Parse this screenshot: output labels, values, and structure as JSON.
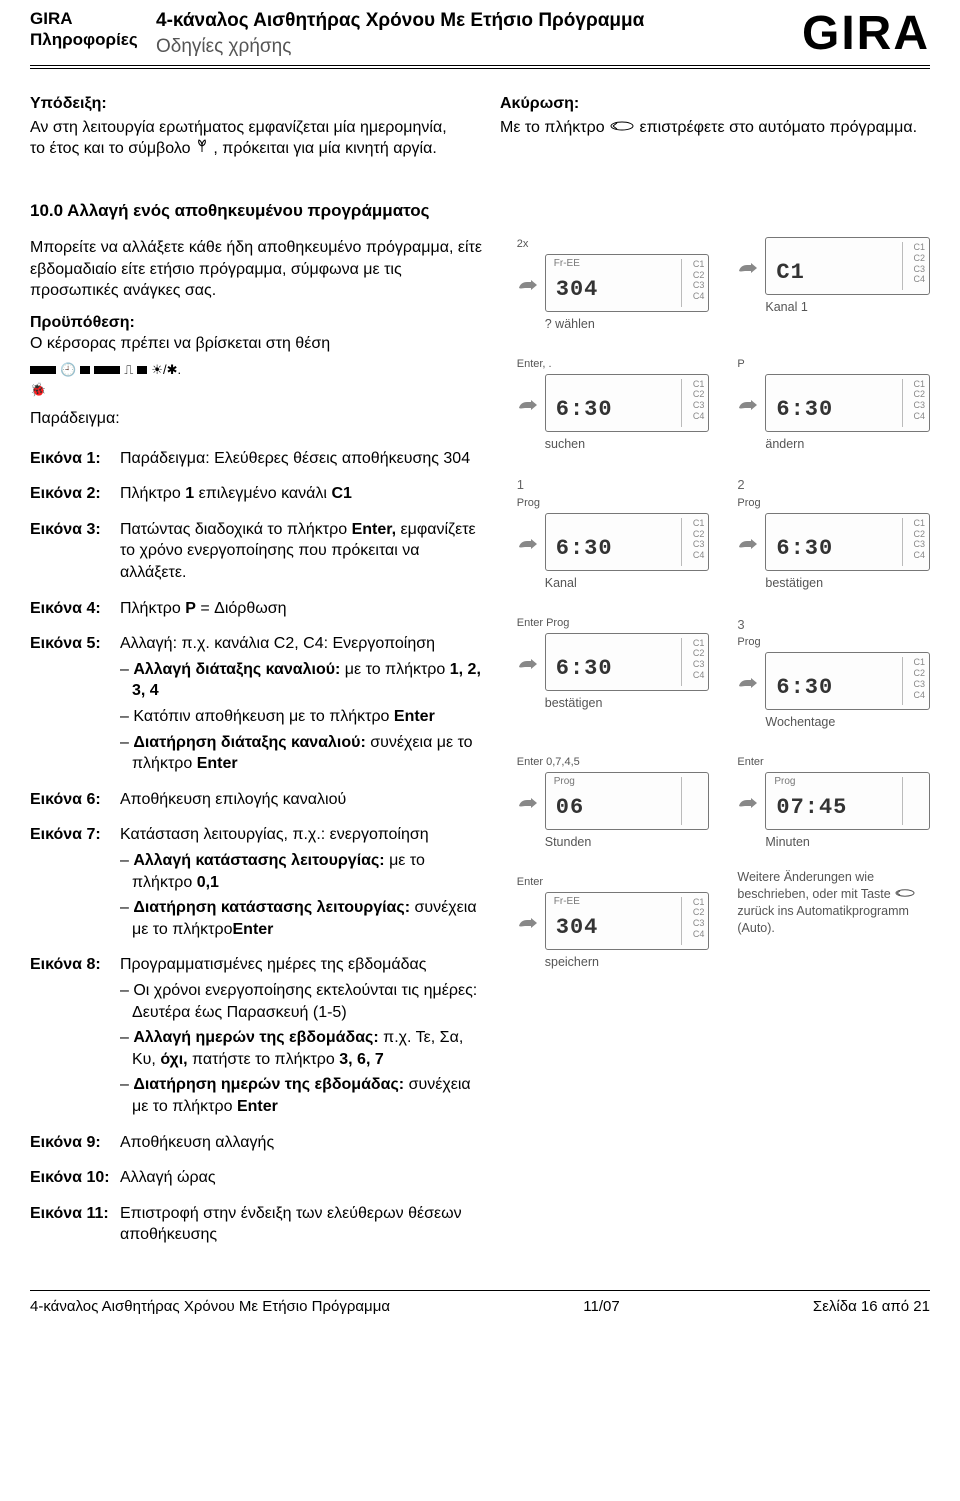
{
  "header": {
    "brand": "GIRA",
    "subbrand": "Πληροφορίες",
    "title": "4-κάναλος Αισθητήρας Χρόνου Με Ετήσιο Πρόγραμμα",
    "subtitle": "Οδηγίες χρήσης",
    "logo": "GIRA"
  },
  "intro": {
    "left": {
      "lead": "Υπόδειξη:",
      "line1a": "Αν στη λειτουργία ερωτήματος εμφανίζεται μία ημερομηνία, το έτος και το σύμβολο ",
      "line1b": ", πρόκειται για μία κινητή αργία."
    },
    "right": {
      "lead": "Ακύρωση:",
      "line1a": "Με το πλήκτρο ",
      "line1b": " επιστρέφετε στο αυτόματο πρόγραμμα."
    }
  },
  "section_heading": "10.0 Αλλαγή ενός αποθηκευμένου προγράμματος",
  "para1": "Μπορείτε να αλλάξετε κάθε ήδη αποθηκευμένο πρόγραμμα, είτε εβδομαδιαίο είτε ετήσιο πρόγραμμα, σύμφωνα με τις προσωπικές ανάγκες σας.",
  "prereq_lead": "Προϋπόθεση:",
  "prereq_text": "Ο κέρσορας πρέπει να βρίσκεται στη θέση",
  "example_label": "Παράδειγμα:",
  "figs": [
    {
      "label": "Εικόνα 1:",
      "first": "Παράδειγμα: Ελεύθερες θέσεις αποθήκευσης 304"
    },
    {
      "label": "Εικόνα 2:",
      "first": "Πλήκτρο 1 επιλεγμένο κανάλι C1",
      "first_bold_parts": [
        "1",
        "C1"
      ]
    },
    {
      "label": "Εικόνα 3:",
      "first": "Πατώντας διαδοχικά το πλήκτρο Enter, εμφανίζετε το χρόνο ενεργοποίησης που πρόκειται να αλλάξετε.",
      "first_bold_parts": [
        "Enter,"
      ]
    },
    {
      "label": "Εικόνα 4:",
      "first": "Πλήκτρο P = Διόρθωση",
      "first_bold_parts": [
        "P"
      ]
    },
    {
      "label": "Εικόνα 5:",
      "first": "Αλλαγή: π.χ. κανάλια C2, C4: Ενεργοποίηση",
      "subs": [
        {
          "b": "Αλλαγή διάταξης καναλιού:",
          "rest": " με το πλήκτρο 1, 2, 3, 4",
          "bold_tail": [
            "1, 2, 3, 4"
          ]
        },
        {
          "b": "",
          "rest": "Κατόπιν αποθήκευση με το πλήκτρο Enter",
          "bold_tail": [
            "Enter"
          ]
        },
        {
          "b": "Διατήρηση διάταξης καναλιού:",
          "rest": " συνέχεια με το πλήκτρο Enter",
          "bold_tail": [
            "Enter"
          ]
        }
      ]
    },
    {
      "label": "Εικόνα 6:",
      "first": "Αποθήκευση επιλογής καναλιού"
    },
    {
      "label": "Εικόνα 7:",
      "first": "Κατάσταση λειτουργίας, π.χ.: ενεργοποίηση",
      "subs": [
        {
          "b": "Αλλαγή κατάστασης λειτουργίας:",
          "rest": " με το πλήκτρο 0,1",
          "bold_tail": [
            "0,1"
          ]
        },
        {
          "b": "Διατήρηση κατάστασης λειτουργίας:",
          "rest": " συνέχεια με το πλήκτροEnter",
          "bold_tail": [
            "Enter"
          ]
        }
      ]
    },
    {
      "label": "Εικόνα 8:",
      "first": "Προγραμματισμένες ημέρες της εβδομάδας",
      "subs": [
        {
          "b": "",
          "rest": "Οι χρόνοι ενεργοποίησης εκτελούνται τις ημέρες: Δευτέρα έως Παρασκευή (1-5)"
        },
        {
          "b": "Αλλαγή ημερών της εβδομάδας:",
          "rest": " π.χ. Τε, Σα, Κυ, όχι, πατήστε το πλήκτρο 3, 6, 7",
          "bold_tail": [
            "όχι,",
            "3, 6, 7"
          ]
        },
        {
          "b": "Διατήρηση ημερών της εβδομάδας:",
          "rest": " συνέχεια με το πλήκτρο Enter",
          "bold_tail": [
            "Enter"
          ]
        }
      ]
    },
    {
      "label": "Εικόνα 9:",
      "first": "Αποθήκευση αλλαγής"
    },
    {
      "label": "Εικόνα 10:",
      "first": "Αλλαγή ώρας"
    },
    {
      "label": "Εικόνα 11:",
      "first": "Επιστροφή στην ένδειξη των ελεύθερων θέσεων αποθήκευσης"
    }
  ],
  "panels": [
    {
      "num": "",
      "top": "2x",
      "big": "304",
      "side": "C1\nC2\nC3\nC4",
      "caption": "? wählen",
      "pre": "Fr-EE"
    },
    {
      "num": "",
      "top": "",
      "big": "C1",
      "side": "C1\nC2\nC3\nC4",
      "caption": "Kanal 1"
    },
    {
      "num": "",
      "top": "Enter, .",
      "big": "6:30",
      "side": "C1\nC2\nC3\nC4",
      "caption": "suchen"
    },
    {
      "num": "",
      "top": "P",
      "big": "6:30",
      "side": "C1\nC2\nC3\nC4",
      "caption": "ändern"
    },
    {
      "num": "1",
      "top": "Prog",
      "big": "6:30",
      "side": "C1\nC2\nC3\nC4",
      "caption": "Kanal"
    },
    {
      "num": "2",
      "top": "Prog",
      "big": "6:30",
      "side": "C1\nC2\nC3\nC4",
      "caption": "bestätigen"
    },
    {
      "num": "",
      "top": "Enter  Prog",
      "big": "6:30",
      "side": "C1\nC2\nC3\nC4",
      "caption": "bestätigen"
    },
    {
      "num": "3",
      "top": "Prog",
      "big": "6:30",
      "side": "C1\nC2\nC3\nC4",
      "caption": "Wochentage"
    },
    {
      "num": "",
      "top": "Enter 0,7,4,5",
      "big": "06",
      "side": "",
      "caption": "Stunden",
      "pre": "Prog"
    },
    {
      "num": "",
      "top": "Enter",
      "big": "07:45",
      "side": "",
      "caption": "Minuten",
      "pre": "Prog"
    },
    {
      "num": "",
      "top": "Enter",
      "big": "304",
      "side": "C1\nC2\nC3\nC4",
      "caption": "speichern",
      "pre": "Fr-EE"
    }
  ],
  "end_note_a": "Weitere Änderungen wie beschrieben, oder mit Taste ",
  "end_note_b": " zurück ins Automatikprogramm (Auto).",
  "footer": {
    "left": "4-κάναλος Αισθητήρας Χρόνου Με Ετήσιο Πρόγραμμα",
    "mid": "11/07",
    "right": "Σελίδα 16 από 21"
  },
  "colors": {
    "text": "#000000",
    "muted": "#555555",
    "border": "#777777"
  }
}
